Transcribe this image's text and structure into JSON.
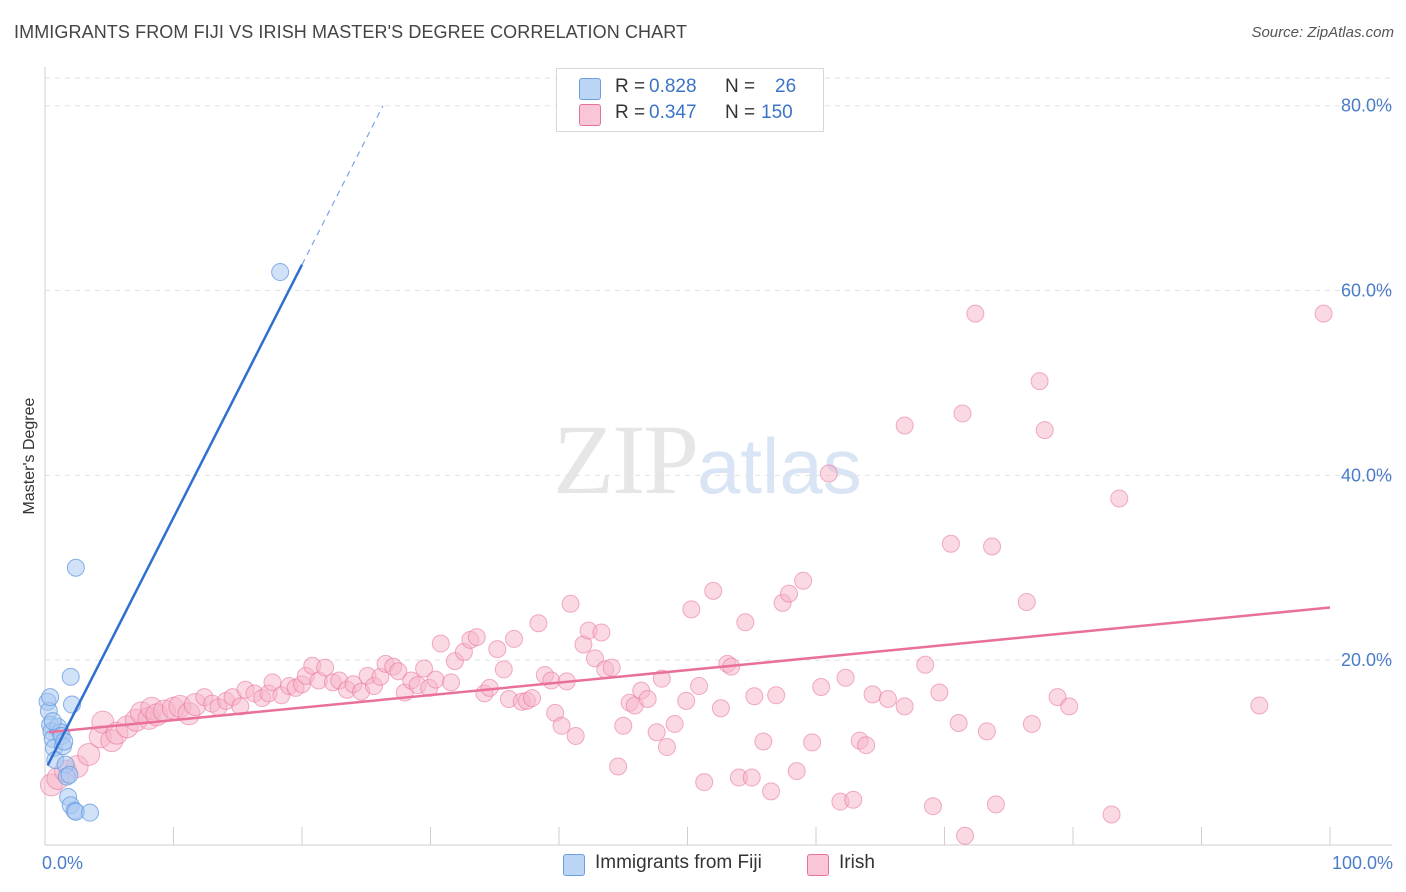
{
  "title": "IMMIGRANTS FROM FIJI VS IRISH MASTER'S DEGREE CORRELATION CHART",
  "source": "Source: ZipAtlas.com",
  "watermark": {
    "zip": "ZIP",
    "atlas": "atlas"
  },
  "legend": {
    "rows": [
      {
        "r_label": "R =",
        "r_value": "0.828",
        "n_label": "N =",
        "n_value": "26",
        "color": "#a9c8f2"
      },
      {
        "r_label": "R =",
        "r_value": "0.347",
        "n_label": "N =",
        "n_value": "150",
        "color": "#f5b4c8"
      }
    ]
  },
  "bottom_legend": [
    {
      "label": "Immigrants from Fiji",
      "color": "#a9c8f2"
    },
    {
      "label": "Irish",
      "color": "#f5b4c8"
    }
  ],
  "chart_data": {
    "type": "scatter",
    "title": "IMMIGRANTS FROM FIJI VS IRISH MASTER'S DEGREE CORRELATION CHART",
    "xlabel": "",
    "ylabel": "Master's Degree",
    "xlim": [
      0,
      100
    ],
    "ylim": [
      0,
      83
    ],
    "x_ticks_labels": [
      "0.0%",
      "100.0%"
    ],
    "y_ticks": [
      20,
      40,
      60,
      80
    ],
    "y_ticks_labels": [
      "20.0%",
      "40.0%",
      "60.0%",
      "80.0%"
    ],
    "grid": true,
    "legend_placement": "top-center",
    "series": [
      {
        "name": "Immigrants from Fiji",
        "color": "#6a9fe0",
        "fill": "#a9c8f2",
        "trend": {
          "x": [
            0.2,
            20.0
          ],
          "y": [
            8.6,
            62.8
          ],
          "dashed_to": [
            26.3,
            80.0
          ]
        },
        "points": [
          [
            0.2,
            15.5
          ],
          [
            0.3,
            14.5
          ],
          [
            0.4,
            13.0
          ],
          [
            0.5,
            12.3
          ],
          [
            0.6,
            11.5
          ],
          [
            0.7,
            10.5
          ],
          [
            0.8,
            9.2
          ],
          [
            1.0,
            12.8
          ],
          [
            1.2,
            12.2
          ],
          [
            1.3,
            11.8
          ],
          [
            1.4,
            10.7
          ],
          [
            1.5,
            11.2
          ],
          [
            1.6,
            8.7
          ],
          [
            1.7,
            7.4
          ],
          [
            1.8,
            5.2
          ],
          [
            1.9,
            7.6
          ],
          [
            2.0,
            4.3
          ],
          [
            2.1,
            15.2
          ],
          [
            2.0,
            18.2
          ],
          [
            2.3,
            3.7
          ],
          [
            2.4,
            3.6
          ],
          [
            2.4,
            30.0
          ],
          [
            3.5,
            3.5
          ],
          [
            18.3,
            62.0
          ],
          [
            0.4,
            16.0
          ],
          [
            0.6,
            13.4
          ]
        ]
      },
      {
        "name": "Irish",
        "color": "#e8709a",
        "fill": "#f5b4c8",
        "trend": {
          "x": [
            0.3,
            100.0
          ],
          "y": [
            12.2,
            25.7
          ]
        },
        "points": [
          [
            0.5,
            6.5
          ],
          [
            1.0,
            7.2
          ],
          [
            1.6,
            8.0
          ],
          [
            2.5,
            8.5
          ],
          [
            3.4,
            9.8
          ],
          [
            4.3,
            11.7
          ],
          [
            4.5,
            13.3
          ],
          [
            5.2,
            11.3
          ],
          [
            5.6,
            12.1
          ],
          [
            6.4,
            12.8
          ],
          [
            7.1,
            13.5
          ],
          [
            7.5,
            14.3
          ],
          [
            8.1,
            13.7
          ],
          [
            8.3,
            14.8
          ],
          [
            8.7,
            14.1
          ],
          [
            9.3,
            14.5
          ],
          [
            10.0,
            14.8
          ],
          [
            10.5,
            15.0
          ],
          [
            11.2,
            14.2
          ],
          [
            11.7,
            15.2
          ],
          [
            12.4,
            16.0
          ],
          [
            13.0,
            15.3
          ],
          [
            13.5,
            14.9
          ],
          [
            14.1,
            15.6
          ],
          [
            14.6,
            16.0
          ],
          [
            15.2,
            15.0
          ],
          [
            15.6,
            16.8
          ],
          [
            16.3,
            16.4
          ],
          [
            16.9,
            15.9
          ],
          [
            17.4,
            16.4
          ],
          [
            17.7,
            17.6
          ],
          [
            18.4,
            16.2
          ],
          [
            19.0,
            17.2
          ],
          [
            19.5,
            17.0
          ],
          [
            20.0,
            17.4
          ],
          [
            20.3,
            18.3
          ],
          [
            20.8,
            19.4
          ],
          [
            21.3,
            17.8
          ],
          [
            21.8,
            19.2
          ],
          [
            22.4,
            17.6
          ],
          [
            22.9,
            17.8
          ],
          [
            23.5,
            16.8
          ],
          [
            24.0,
            17.4
          ],
          [
            24.6,
            16.6
          ],
          [
            25.1,
            18.3
          ],
          [
            25.6,
            17.2
          ],
          [
            26.1,
            18.2
          ],
          [
            26.5,
            19.6
          ],
          [
            27.1,
            19.3
          ],
          [
            27.5,
            18.8
          ],
          [
            28.0,
            16.5
          ],
          [
            28.5,
            17.8
          ],
          [
            29.0,
            17.3
          ],
          [
            29.5,
            19.1
          ],
          [
            29.9,
            17.0
          ],
          [
            30.4,
            17.9
          ],
          [
            30.8,
            21.8
          ],
          [
            31.6,
            17.6
          ],
          [
            31.9,
            19.9
          ],
          [
            32.6,
            20.9
          ],
          [
            33.1,
            22.2
          ],
          [
            33.6,
            22.5
          ],
          [
            34.2,
            16.4
          ],
          [
            34.6,
            17.0
          ],
          [
            35.2,
            21.2
          ],
          [
            35.7,
            19.0
          ],
          [
            36.1,
            15.8
          ],
          [
            36.5,
            22.3
          ],
          [
            37.1,
            15.5
          ],
          [
            37.5,
            15.6
          ],
          [
            37.9,
            15.9
          ],
          [
            38.4,
            24.0
          ],
          [
            38.9,
            18.4
          ],
          [
            39.4,
            17.8
          ],
          [
            39.7,
            14.3
          ],
          [
            40.2,
            12.9
          ],
          [
            40.6,
            17.7
          ],
          [
            40.9,
            26.1
          ],
          [
            41.3,
            11.8
          ],
          [
            41.9,
            21.7
          ],
          [
            42.3,
            23.2
          ],
          [
            42.8,
            20.2
          ],
          [
            43.3,
            23.0
          ],
          [
            43.6,
            19.0
          ],
          [
            44.1,
            19.2
          ],
          [
            44.6,
            8.5
          ],
          [
            45.0,
            12.9
          ],
          [
            45.5,
            15.4
          ],
          [
            45.9,
            15.1
          ],
          [
            46.4,
            16.7
          ],
          [
            46.9,
            15.8
          ],
          [
            47.6,
            12.2
          ],
          [
            48.0,
            18.0
          ],
          [
            48.4,
            10.6
          ],
          [
            49.0,
            13.1
          ],
          [
            49.9,
            15.6
          ],
          [
            50.3,
            25.5
          ],
          [
            50.9,
            17.2
          ],
          [
            51.3,
            6.8
          ],
          [
            52.0,
            27.5
          ],
          [
            52.6,
            14.8
          ],
          [
            53.1,
            19.6
          ],
          [
            53.4,
            19.3
          ],
          [
            54.0,
            7.3
          ],
          [
            54.5,
            24.1
          ],
          [
            55.0,
            7.3
          ],
          [
            55.2,
            16.1
          ],
          [
            55.9,
            11.2
          ],
          [
            56.5,
            5.8
          ],
          [
            56.9,
            16.2
          ],
          [
            57.4,
            26.2
          ],
          [
            57.9,
            27.2
          ],
          [
            58.5,
            8.0
          ],
          [
            59.0,
            28.6
          ],
          [
            59.7,
            11.1
          ],
          [
            60.4,
            17.1
          ],
          [
            61.0,
            40.2
          ],
          [
            61.9,
            4.7
          ],
          [
            62.3,
            18.1
          ],
          [
            62.9,
            4.9
          ],
          [
            63.4,
            11.3
          ],
          [
            63.9,
            10.8
          ],
          [
            64.4,
            16.3
          ],
          [
            65.6,
            15.8
          ],
          [
            66.9,
            15.0
          ],
          [
            66.9,
            45.4
          ],
          [
            68.5,
            19.5
          ],
          [
            69.1,
            4.2
          ],
          [
            69.6,
            16.5
          ],
          [
            70.5,
            32.6
          ],
          [
            71.1,
            13.2
          ],
          [
            71.4,
            46.7
          ],
          [
            71.6,
            1.0
          ],
          [
            72.4,
            57.5
          ],
          [
            73.3,
            12.3
          ],
          [
            73.7,
            32.3
          ],
          [
            74.0,
            4.4
          ],
          [
            76.4,
            26.3
          ],
          [
            76.8,
            13.1
          ],
          [
            77.4,
            50.2
          ],
          [
            77.8,
            44.9
          ],
          [
            78.8,
            16.0
          ],
          [
            79.7,
            15.0
          ],
          [
            83.0,
            3.3
          ],
          [
            83.6,
            37.5
          ],
          [
            94.5,
            15.1
          ],
          [
            99.5,
            57.5
          ]
        ]
      }
    ]
  }
}
